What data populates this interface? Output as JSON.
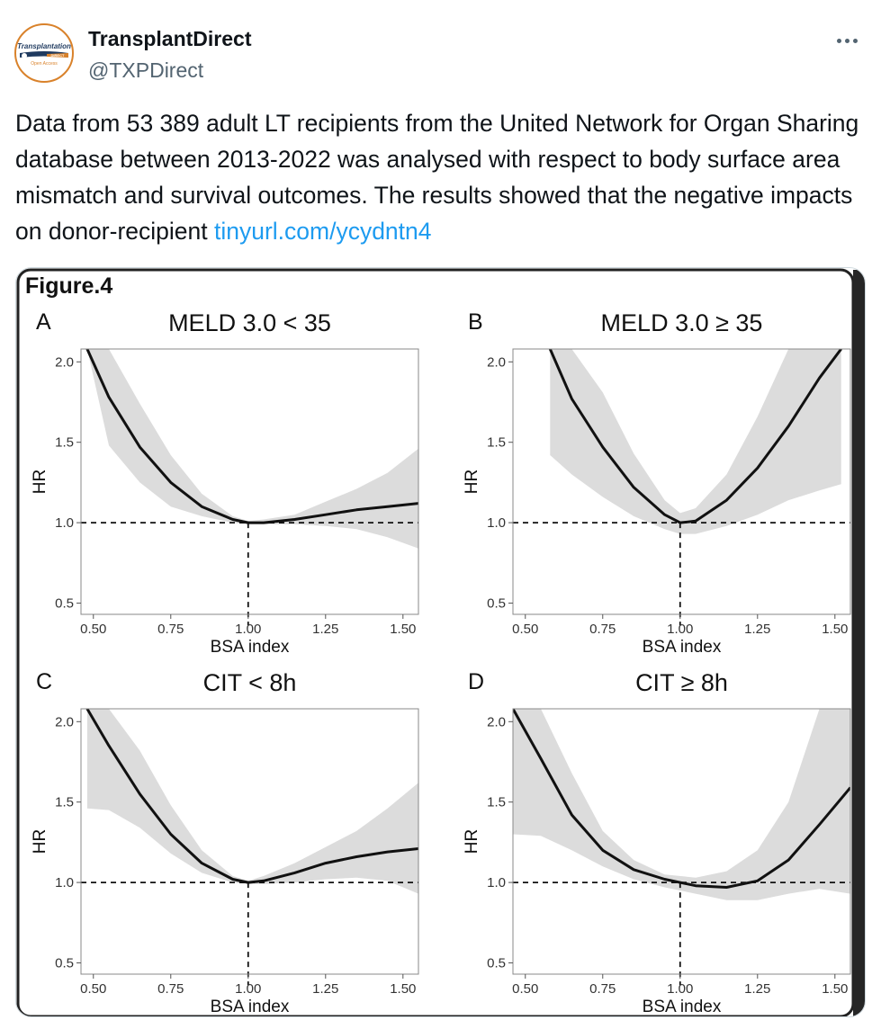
{
  "tweet": {
    "author_name": "TransplantDirect",
    "author_handle": "@TXPDirect",
    "avatar_logo_text": [
      "Transplantation",
      "DIRECT",
      "Open Access"
    ],
    "more_icon": "more-horizontal-icon",
    "text": "Data from 53 389 adult LT recipients from the United Network for Organ Sharing database between 2013-2022 was analysed with respect to body surface area mismatch and survival outcomes. The results showed that the negative impacts on donor-recipient ",
    "link_text": "tinyurl.com/ycydntn4",
    "link_color": "#1d9bf0"
  },
  "figure": {
    "title": "Figure.4"
  },
  "chart_data": [
    {
      "type": "line",
      "panel_letter": "A",
      "title": "MELD 3.0 < 35",
      "xlabel": "BSA index",
      "ylabel": "HR",
      "xlim": [
        0.46,
        1.55
      ],
      "ylim": [
        0.43,
        2.08
      ],
      "xticks": [
        "0.50",
        "0.75",
        "1.00",
        "1.25",
        "1.50"
      ],
      "yticks": [
        "0.5",
        "1.0",
        "1.5",
        "2.0"
      ],
      "reference_lines": {
        "x": 1.0,
        "y": 1.0
      },
      "series": [
        {
          "x": [
            0.48,
            0.55,
            0.65,
            0.75,
            0.85,
            0.95,
            1.0,
            1.05,
            1.15,
            1.25,
            1.35,
            1.45,
            1.55
          ],
          "y": [
            2.08,
            1.78,
            1.47,
            1.25,
            1.1,
            1.02,
            1.0,
            1.0,
            1.02,
            1.05,
            1.08,
            1.1,
            1.12
          ],
          "lower": [
            2.08,
            1.48,
            1.25,
            1.1,
            1.04,
            1.0,
            0.99,
            0.99,
            0.99,
            0.98,
            0.96,
            0.91,
            0.84
          ],
          "upper": [
            2.08,
            2.08,
            1.74,
            1.42,
            1.18,
            1.04,
            1.01,
            1.02,
            1.05,
            1.13,
            1.21,
            1.31,
            1.46
          ]
        }
      ]
    },
    {
      "type": "line",
      "panel_letter": "B",
      "title": "MELD 3.0 ≥ 35",
      "xlabel": "BSA index",
      "ylabel": "HR",
      "xlim": [
        0.46,
        1.55
      ],
      "ylim": [
        0.43,
        2.08
      ],
      "xticks": [
        "0.50",
        "0.75",
        "1.00",
        "1.25",
        "1.50"
      ],
      "yticks": [
        "0.5",
        "1.0",
        "1.5",
        "2.0"
      ],
      "reference_lines": {
        "x": 1.0,
        "y": 1.0
      },
      "series": [
        {
          "x": [
            0.58,
            0.65,
            0.75,
            0.85,
            0.95,
            1.0,
            1.05,
            1.15,
            1.25,
            1.35,
            1.45,
            1.52
          ],
          "y": [
            2.08,
            1.77,
            1.47,
            1.22,
            1.05,
            1.0,
            1.01,
            1.14,
            1.34,
            1.6,
            1.9,
            2.08
          ],
          "lower": [
            1.42,
            1.3,
            1.16,
            1.04,
            0.96,
            0.93,
            0.93,
            0.98,
            1.05,
            1.14,
            1.2,
            1.24
          ],
          "upper": [
            2.08,
            2.08,
            1.81,
            1.43,
            1.14,
            1.06,
            1.09,
            1.3,
            1.66,
            2.08,
            2.08,
            2.08
          ]
        }
      ]
    },
    {
      "type": "line",
      "panel_letter": "C",
      "title": "CIT < 8h",
      "xlabel": "BSA index",
      "ylabel": "HR",
      "xlim": [
        0.46,
        1.55
      ],
      "ylim": [
        0.43,
        2.08
      ],
      "xticks": [
        "0.50",
        "0.75",
        "1.00",
        "1.25",
        "1.50"
      ],
      "yticks": [
        "0.5",
        "1.0",
        "1.5",
        "2.0"
      ],
      "reference_lines": {
        "x": 1.0,
        "y": 1.0
      },
      "series": [
        {
          "x": [
            0.48,
            0.55,
            0.65,
            0.75,
            0.85,
            0.95,
            1.0,
            1.05,
            1.15,
            1.25,
            1.35,
            1.45,
            1.55
          ],
          "y": [
            2.08,
            1.85,
            1.55,
            1.3,
            1.12,
            1.02,
            1.0,
            1.01,
            1.06,
            1.12,
            1.16,
            1.19,
            1.21
          ],
          "lower": [
            1.46,
            1.45,
            1.34,
            1.18,
            1.06,
            1.0,
            0.99,
            0.99,
            1.0,
            1.02,
            1.03,
            1.01,
            0.93
          ],
          "upper": [
            2.08,
            2.08,
            1.82,
            1.48,
            1.2,
            1.04,
            1.01,
            1.04,
            1.12,
            1.22,
            1.32,
            1.46,
            1.62
          ]
        }
      ]
    },
    {
      "type": "line",
      "panel_letter": "D",
      "title": "CIT ≥ 8h",
      "xlabel": "BSA index",
      "ylabel": "HR",
      "xlim": [
        0.46,
        1.55
      ],
      "ylim": [
        0.43,
        2.08
      ],
      "xticks": [
        "0.50",
        "0.75",
        "1.00",
        "1.25",
        "1.50"
      ],
      "yticks": [
        "0.5",
        "1.0",
        "1.5",
        "2.0"
      ],
      "reference_lines": {
        "x": 1.0,
        "y": 1.0
      },
      "series": [
        {
          "x": [
            0.46,
            0.55,
            0.65,
            0.75,
            0.85,
            0.95,
            1.05,
            1.15,
            1.25,
            1.35,
            1.45,
            1.55
          ],
          "y": [
            2.08,
            1.77,
            1.42,
            1.2,
            1.08,
            1.02,
            0.98,
            0.97,
            1.01,
            1.14,
            1.36,
            1.59
          ],
          "lower": [
            1.3,
            1.29,
            1.2,
            1.1,
            1.02,
            0.97,
            0.93,
            0.89,
            0.89,
            0.93,
            0.96,
            0.93
          ],
          "upper": [
            2.08,
            2.08,
            1.68,
            1.32,
            1.14,
            1.05,
            1.03,
            1.07,
            1.2,
            1.5,
            2.08,
            2.08
          ]
        }
      ]
    }
  ]
}
